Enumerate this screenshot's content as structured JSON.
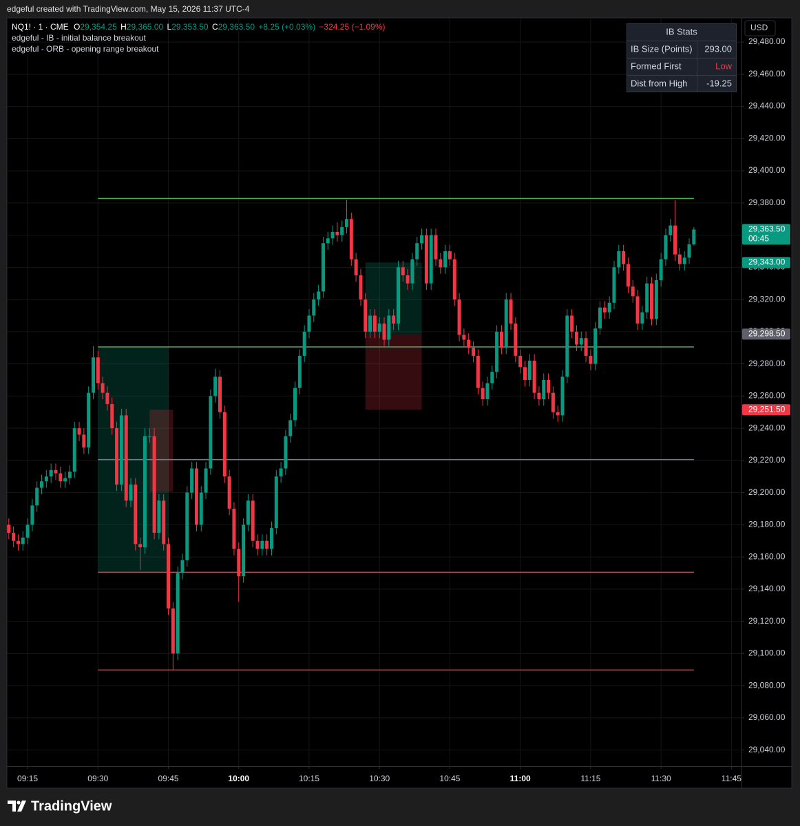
{
  "watermark": "edgeful created with TradingView.com, May 15, 2026 11:37 UTC-4",
  "brand": "TradingView",
  "currency": "USD",
  "legend": {
    "symbol": "NQ1! · 1 · CME",
    "ohlc": [
      {
        "key": "O",
        "value": "29,354.25"
      },
      {
        "key": "H",
        "value": "29,365.00"
      },
      {
        "key": "L",
        "value": "29,353.50"
      },
      {
        "key": "C",
        "value": "29,363.50"
      }
    ],
    "change": "+8.25 (+0.03%)",
    "day_change": "−324.25 (−1.09%)",
    "indicators": [
      "edgeful - IB - initial balance breakout",
      "edgeful - ORB - opening range breakout"
    ]
  },
  "ib_stats": {
    "title": "IB Stats",
    "rows": [
      [
        "IB Size (Points)",
        "293.00"
      ],
      [
        "Formed First",
        "Low"
      ],
      [
        "Dist from High",
        "-19.25"
      ]
    ]
  },
  "chart_data": {
    "type": "candlestick",
    "up_color": "#089981",
    "down_color": "#f23645",
    "grid": true,
    "xlim": [
      "09:10",
      "11:47"
    ],
    "xticks": [
      "09:15",
      "09:30",
      "09:45",
      "10:00",
      "10:15",
      "10:30",
      "10:45",
      "11:00",
      "11:15",
      "11:30",
      "11:45"
    ],
    "ylim": [
      29030,
      29495
    ],
    "yticks": [
      {
        "value": 29040,
        "label": "29,040.00"
      },
      {
        "value": 29060,
        "label": "29,060.00"
      },
      {
        "value": 29080,
        "label": "29,080.00"
      },
      {
        "value": 29100,
        "label": "29,100.00"
      },
      {
        "value": 29120,
        "label": "29,120.00"
      },
      {
        "value": 29140,
        "label": "29,140.00"
      },
      {
        "value": 29160,
        "label": "29,160.00"
      },
      {
        "value": 29180,
        "label": "29,180.00"
      },
      {
        "value": 29200,
        "label": "29,200.00"
      },
      {
        "value": 29220,
        "label": "29,220.00"
      },
      {
        "value": 29240,
        "label": "29,240.00"
      },
      {
        "value": 29260,
        "label": "29,260.00"
      },
      {
        "value": 29280,
        "label": "29,280.00"
      },
      {
        "value": 29300,
        "label": "29,300.00"
      },
      {
        "value": 29320,
        "label": "29,320.00"
      },
      {
        "value": 29340,
        "label": "29,340.00"
      },
      {
        "value": 29360,
        "label": "29,360.00"
      },
      {
        "value": 29380,
        "label": "29,380.00"
      },
      {
        "value": 29400,
        "label": "29,400.00"
      },
      {
        "value": 29420,
        "label": "29,420.00"
      },
      {
        "value": 29440,
        "label": "29,440.00"
      },
      {
        "value": 29460,
        "label": "29,460.00"
      },
      {
        "value": 29480,
        "label": "29,480.00"
      }
    ],
    "x": [
      "09:11",
      "09:12",
      "09:13",
      "09:14",
      "09:15",
      "09:16",
      "09:17",
      "09:18",
      "09:19",
      "09:20",
      "09:21",
      "09:22",
      "09:23",
      "09:24",
      "09:25",
      "09:26",
      "09:27",
      "09:28",
      "09:29",
      "09:30",
      "09:31",
      "09:32",
      "09:33",
      "09:34",
      "09:35",
      "09:36",
      "09:37",
      "09:38",
      "09:39",
      "09:40",
      "09:41",
      "09:42",
      "09:43",
      "09:44",
      "09:45",
      "09:46",
      "09:47",
      "09:48",
      "09:49",
      "09:50",
      "09:51",
      "09:52",
      "09:53",
      "09:54",
      "09:55",
      "09:56",
      "09:57",
      "09:58",
      "09:59",
      "10:00",
      "10:01",
      "10:02",
      "10:03",
      "10:04",
      "10:05",
      "10:06",
      "10:07",
      "10:08",
      "10:09",
      "10:10",
      "10:11",
      "10:12",
      "10:13",
      "10:14",
      "10:15",
      "10:16",
      "10:17",
      "10:18",
      "10:19",
      "10:20",
      "10:21",
      "10:22",
      "10:23",
      "10:24",
      "10:25",
      "10:26",
      "10:27",
      "10:28",
      "10:29",
      "10:30",
      "10:31",
      "10:32",
      "10:33",
      "10:34",
      "10:35",
      "10:36",
      "10:37",
      "10:38",
      "10:39",
      "10:40",
      "10:41",
      "10:42",
      "10:43",
      "10:44",
      "10:45",
      "10:46",
      "10:47",
      "10:48",
      "10:49",
      "10:50",
      "10:51",
      "10:52",
      "10:53",
      "10:54",
      "10:55",
      "10:56",
      "10:57",
      "10:58",
      "10:59",
      "11:00",
      "11:01",
      "11:02",
      "11:03",
      "11:04",
      "11:05",
      "11:06",
      "11:07",
      "11:08",
      "11:09",
      "11:10",
      "11:11",
      "11:12",
      "11:13",
      "11:14",
      "11:15",
      "11:16",
      "11:17",
      "11:18",
      "11:19",
      "11:20",
      "11:21",
      "11:22",
      "11:23",
      "11:24",
      "11:25",
      "11:26",
      "11:27",
      "11:28",
      "11:29",
      "11:30",
      "11:31",
      "11:32",
      "11:33",
      "11:34",
      "11:35",
      "11:36",
      "11:37"
    ],
    "open": [
      29180,
      29175,
      29170,
      29168,
      29172,
      29180,
      29192,
      29203,
      29207,
      29210,
      29214,
      29212,
      29207,
      29209,
      29213,
      29240,
      29236,
      29228,
      29262,
      29284,
      29268,
      29262,
      29255,
      29240,
      29205,
      29248,
      29195,
      29205,
      29168,
      29166,
      29235,
      29235,
      29175,
      29195,
      29168,
      29128,
      29100,
      29150,
      29158,
      29200,
      29215,
      29180,
      29200,
      29215,
      29260,
      29272,
      29250,
      29210,
      29190,
      29165,
      29148,
      29180,
      29195,
      29170,
      29165,
      29170,
      29165,
      29178,
      29210,
      29215,
      29235,
      29245,
      29265,
      29285,
      29300,
      29310,
      29320,
      29325,
      29355,
      29358,
      29362,
      29360,
      29365,
      29370,
      29345,
      29335,
      29320,
      29300,
      29310,
      29300,
      29305,
      29295,
      29310,
      29305,
      29340,
      29335,
      29330,
      29345,
      29355,
      29360,
      29330,
      29360,
      29345,
      29340,
      29350,
      29345,
      29320,
      29298,
      29295,
      29290,
      29285,
      29265,
      29258,
      29268,
      29275,
      29300,
      29290,
      29320,
      29305,
      29285,
      29278,
      29270,
      29282,
      29262,
      29258,
      29270,
      29262,
      29250,
      29248,
      29272,
      29310,
      29300,
      29292,
      29296,
      29285,
      29280,
      29302,
      29315,
      29312,
      29318,
      29340,
      29350,
      29342,
      29328,
      29322,
      29305,
      29312,
      29330,
      29308,
      29332,
      29345,
      29360,
      29366,
      29348,
      29342,
      29346,
      29354.25
    ],
    "high": [
      29184,
      29179,
      29174,
      29176,
      29184,
      29196,
      29207,
      29211,
      29214,
      29218,
      29218,
      29216,
      29213,
      29217,
      29244,
      29244,
      29240,
      29266,
      29291,
      29288,
      29272,
      29266,
      29259,
      29244,
      29252,
      29252,
      29209,
      29209,
      29172,
      29240,
      29240,
      29240,
      29199,
      29199,
      29172,
      29132,
      29154,
      29162,
      29204,
      29219,
      29219,
      29204,
      29219,
      29264,
      29277,
      29276,
      29254,
      29214,
      29194,
      29169,
      29184,
      29199,
      29199,
      29174,
      29174,
      29174,
      29182,
      29214,
      29219,
      29239,
      29249,
      29269,
      29289,
      29304,
      29314,
      29324,
      29329,
      29359,
      29362,
      29366,
      29368,
      29369,
      29382,
      29374,
      29349,
      29339,
      29324,
      29314,
      29314,
      29309,
      29309,
      29314,
      29314,
      29344,
      29344,
      29339,
      29349,
      29359,
      29364,
      29364,
      29364,
      29364,
      29349,
      29354,
      29354,
      29349,
      29324,
      29302,
      29299,
      29294,
      29289,
      29269,
      29272,
      29279,
      29304,
      29304,
      29324,
      29324,
      29309,
      29289,
      29282,
      29286,
      29286,
      29266,
      29274,
      29274,
      29266,
      29254,
      29276,
      29314,
      29314,
      29304,
      29300,
      29300,
      29289,
      29306,
      29319,
      29319,
      29322,
      29344,
      29354,
      29354,
      29346,
      29332,
      29326,
      29316,
      29334,
      29334,
      29336,
      29349,
      29364,
      29370,
      29382,
      29352,
      29350,
      29358,
      29365
    ],
    "low": [
      29171,
      29166,
      29164,
      29164,
      29168,
      29176,
      29188,
      29199,
      29203,
      29206,
      29208,
      29203,
      29203,
      29205,
      29209,
      29232,
      29224,
      29224,
      29258,
      29264,
      29258,
      29251,
      29236,
      29201,
      29201,
      29191,
      29191,
      29164,
      29152,
      29162,
      29231,
      29171,
      29171,
      29164,
      29124,
      29090,
      29096,
      29146,
      29154,
      29196,
      29176,
      29176,
      29196,
      29211,
      29256,
      29246,
      29206,
      29186,
      29161,
      29132,
      29144,
      29176,
      29166,
      29161,
      29161,
      29161,
      29161,
      29174,
      29206,
      29211,
      29231,
      29241,
      29261,
      29281,
      29296,
      29306,
      29316,
      29321,
      29351,
      29354,
      29356,
      29356,
      29361,
      29341,
      29331,
      29316,
      29296,
      29296,
      29296,
      29296,
      29291,
      29291,
      29301,
      29301,
      29331,
      29326,
      29326,
      29341,
      29351,
      29326,
      29326,
      29341,
      29336,
      29336,
      29341,
      29316,
      29294,
      29291,
      29286,
      29281,
      29261,
      29254,
      29254,
      29264,
      29271,
      29286,
      29286,
      29301,
      29281,
      29274,
      29266,
      29266,
      29258,
      29254,
      29254,
      29258,
      29246,
      29244,
      29244,
      29268,
      29296,
      29288,
      29288,
      29281,
      29276,
      29276,
      29298,
      29308,
      29308,
      29314,
      29336,
      29338,
      29324,
      29318,
      29301,
      29301,
      29308,
      29304,
      29304,
      29328,
      29341,
      29356,
      29344,
      29338,
      29338,
      29342,
      29353.5
    ],
    "close": [
      29175,
      29170,
      29168,
      29172,
      29180,
      29192,
      29203,
      29207,
      29210,
      29214,
      29212,
      29207,
      29209,
      29213,
      29240,
      29236,
      29228,
      29262,
      29284,
      29268,
      29262,
      29255,
      29240,
      29205,
      29248,
      29195,
      29205,
      29168,
      29166,
      29235,
      29235,
      29175,
      29195,
      29168,
      29128,
      29100,
      29150,
      29158,
      29200,
      29215,
      29180,
      29200,
      29215,
      29260,
      29272,
      29250,
      29210,
      29190,
      29165,
      29148,
      29180,
      29195,
      29170,
      29165,
      29170,
      29165,
      29178,
      29210,
      29215,
      29235,
      29245,
      29265,
      29285,
      29300,
      29310,
      29320,
      29325,
      29355,
      29358,
      29362,
      29360,
      29365,
      29370,
      29345,
      29335,
      29320,
      29300,
      29310,
      29300,
      29305,
      29295,
      29310,
      29305,
      29340,
      29335,
      29330,
      29345,
      29355,
      29360,
      29330,
      29360,
      29345,
      29340,
      29350,
      29345,
      29320,
      29298,
      29295,
      29290,
      29285,
      29265,
      29258,
      29268,
      29275,
      29300,
      29290,
      29320,
      29305,
      29285,
      29278,
      29270,
      29282,
      29262,
      29258,
      29270,
      29262,
      29250,
      29248,
      29272,
      29310,
      29300,
      29292,
      29296,
      29285,
      29280,
      29302,
      29315,
      29312,
      29318,
      29340,
      29350,
      29342,
      29328,
      29322,
      29305,
      29312,
      29330,
      29308,
      29332,
      29345,
      29360,
      29366,
      29348,
      29342,
      29346,
      29354.25,
      29363.5
    ],
    "levels": [
      {
        "value": 29382.75,
        "from": "09:30",
        "to": "11:37",
        "color": "#4caf50"
      },
      {
        "value": 29290.5,
        "from": "09:30",
        "to": "11:37",
        "color": "#4caf50"
      },
      {
        "value": 29220.5,
        "from": "09:30",
        "to": "11:37",
        "color": "#787b86"
      },
      {
        "value": 29150.5,
        "from": "09:30",
        "to": "11:37",
        "color": "#f23645"
      },
      {
        "value": 29089.75,
        "from": "09:30",
        "to": "11:37",
        "color": "#f23645"
      }
    ],
    "zones": [
      {
        "from": "09:30",
        "to": "09:45",
        "top": 29290.5,
        "bottom": 29150.5,
        "color": "#089981"
      },
      {
        "from": "09:41",
        "to": "09:46",
        "top": 29251.5,
        "bottom": 29200.5,
        "color": "#f23645"
      },
      {
        "from": "10:27",
        "to": "10:39",
        "top": 29343,
        "bottom": 29298.5,
        "color": "#089981"
      },
      {
        "from": "10:27",
        "to": "10:39",
        "top": 29298.5,
        "bottom": 29251.5,
        "color": "#f23645"
      }
    ],
    "price_tags": [
      {
        "value": 29363.5,
        "label": "29,363.50",
        "countdown": "00:45",
        "color": "#089981"
      },
      {
        "value": 29343,
        "label": "29,343.00",
        "color": "#089981"
      },
      {
        "value": 29298.5,
        "label": "29,298.50",
        "color": "#5d606b"
      },
      {
        "value": 29251.5,
        "label": "29,251.50",
        "color": "#f23645"
      }
    ]
  }
}
